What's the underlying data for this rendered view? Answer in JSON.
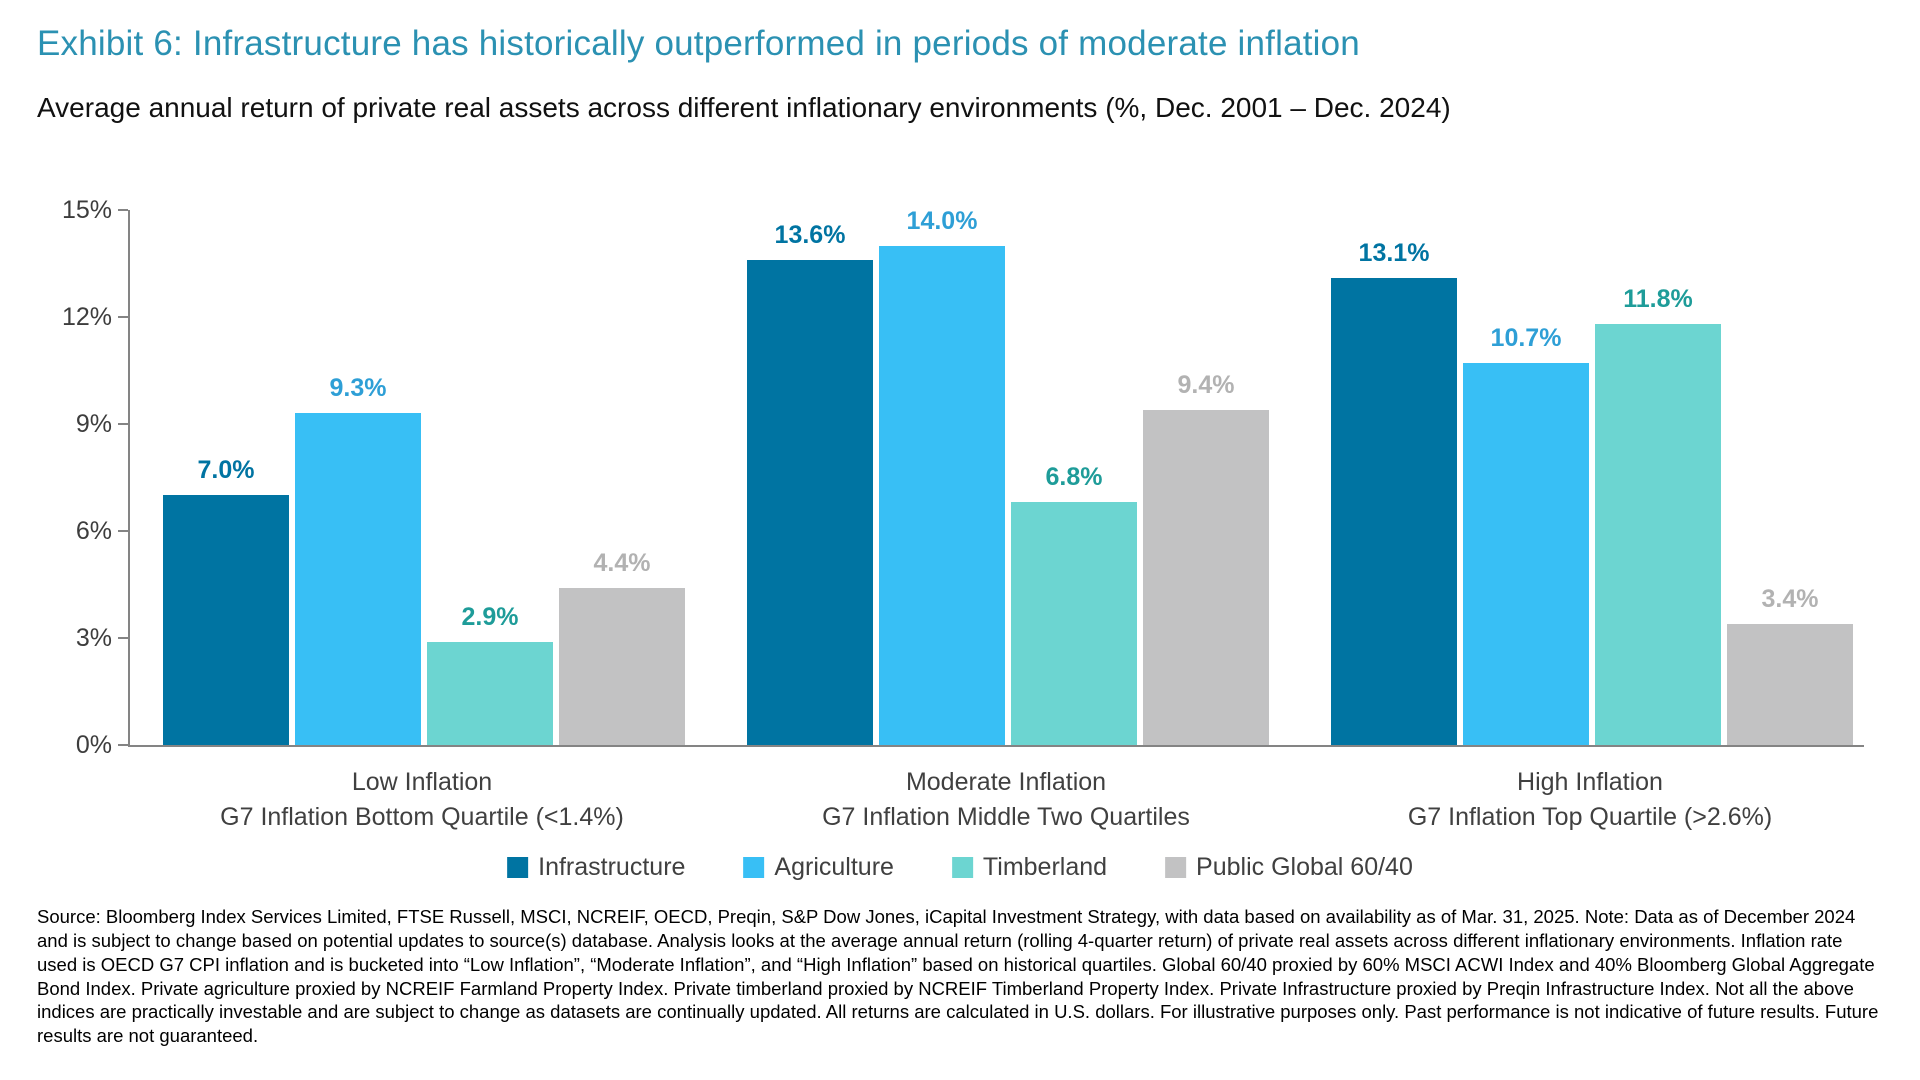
{
  "title": "Exhibit 6: Infrastructure has historically outperformed in periods of moderate inflation",
  "subtitle": "Average annual return of private real assets across different inflationary environments (%, Dec. 2001 – Dec. 2024)",
  "colors": {
    "title": "#2B91B2",
    "axis": "#848484",
    "axis_text": "#3D3D3D",
    "category_text": "#404040"
  },
  "chart_data": {
    "type": "bar",
    "title": "Average annual return of private real assets across different inflationary environments (%, Dec. 2001 – Dec. 2024)",
    "xlabel": "",
    "ylabel": "",
    "ylim": [
      0,
      15
    ],
    "grid": false,
    "legend_position": "bottom",
    "yticks": [
      {
        "value": 0,
        "label": "0%"
      },
      {
        "value": 3,
        "label": "3%"
      },
      {
        "value": 6,
        "label": "6%"
      },
      {
        "value": 9,
        "label": "9%"
      },
      {
        "value": 12,
        "label": "12%"
      },
      {
        "value": 15,
        "label": "15%"
      }
    ],
    "categories": [
      {
        "line1": "Low Inflation",
        "line2": "G7 Inflation Bottom Quartile (<1.4%)"
      },
      {
        "line1": "Moderate Inflation",
        "line2": "G7 Inflation Middle Two Quartiles"
      },
      {
        "line1": "High Inflation",
        "line2": "G7 Inflation Top Quartile (>2.6%)"
      }
    ],
    "series": [
      {
        "name": "Infrastructure",
        "color": "#0074A2",
        "label_color": "#0074A2",
        "values": [
          7.0,
          13.6,
          13.1
        ],
        "labels": [
          "7.0%",
          "13.6%",
          "13.1%"
        ]
      },
      {
        "name": "Agriculture",
        "color": "#38BFF5",
        "label_color": "#2E9FD6",
        "values": [
          9.3,
          14.0,
          10.7
        ],
        "labels": [
          "9.3%",
          "14.0%",
          "10.7%"
        ]
      },
      {
        "name": "Timberland",
        "color": "#6CD5D1",
        "label_color": "#1E9C99",
        "values": [
          2.9,
          6.8,
          11.8
        ],
        "labels": [
          "2.9%",
          "6.8%",
          "11.8%"
        ]
      },
      {
        "name": "Public Global 60/40",
        "color": "#C2C2C3",
        "label_color": "#B2B2B2",
        "values": [
          4.4,
          9.4,
          3.4
        ],
        "labels": [
          "4.4%",
          "9.4%",
          "3.4%"
        ]
      }
    ]
  },
  "source_note": "Source: Bloomberg Index Services Limited, FTSE Russell, MSCI, NCREIF, OECD, Preqin, S&P Dow Jones, iCapital Investment Strategy, with data based on availability as of Mar. 31, 2025. Note: Data as of December 2024 and is subject to change based on potential updates to source(s) database. Analysis looks at the average annual return (rolling 4-quarter return) of private real assets across different inflationary environments. Inflation rate used is OECD G7 CPI inflation and is bucketed into “Low Inflation”, “Moderate Inflation”, and “High Inflation” based on historical quartiles. Global 60/40 proxied by 60% MSCI ACWI Index and 40% Bloomberg Global Aggregate Bond Index. Private agriculture proxied by NCREIF Farmland Property Index. Private timberland proxied by NCREIF Timberland Property Index. Private Infrastructure proxied by Preqin Infrastructure Index. Not all the above indices are practically investable and are subject to change as datasets are continually updated. All returns are calculated in U.S. dollars. For illustrative purposes only. Past performance is not indicative of future results. Future results are not guaranteed."
}
